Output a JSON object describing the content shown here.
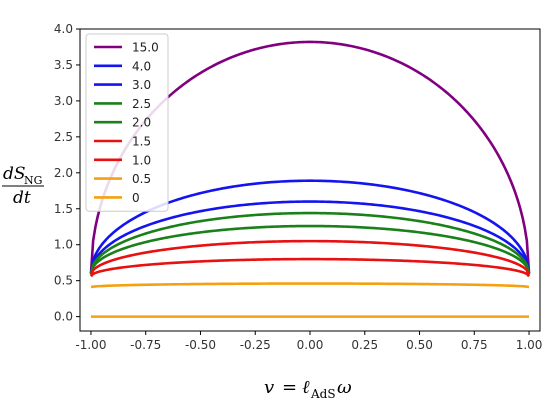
{
  "chart_data": {
    "type": "line",
    "title": "",
    "xlabel": {
      "var": "v",
      "eq": "=",
      "ell": "ℓ",
      "sub": "AdS",
      "omega": "ω"
    },
    "ylabel": {
      "numerator": "dS",
      "numerator_sub": "NG",
      "denominator": "dt"
    },
    "xlim": [
      -1.05,
      1.05
    ],
    "ylim": [
      -0.2,
      4.0
    ],
    "xticks": [
      "-1.00",
      "-0.75",
      "-0.50",
      "-0.25",
      "0.00",
      "0.25",
      "0.50",
      "0.75",
      "1.00"
    ],
    "yticks": [
      "0.0",
      "0.5",
      "1.0",
      "1.5",
      "2.0",
      "2.5",
      "3.0",
      "3.5",
      "4.0"
    ],
    "xtick_values": [
      -1.0,
      -0.75,
      -0.5,
      -0.25,
      0.0,
      0.25,
      0.5,
      0.75,
      1.0
    ],
    "ytick_values": [
      0.0,
      0.5,
      1.0,
      1.5,
      2.0,
      2.5,
      3.0,
      3.5,
      4.0
    ],
    "grid": false,
    "legend_position": "top-left",
    "x_range": [
      -1.0,
      1.0
    ],
    "series": [
      {
        "name": "15.0",
        "color": "#800080",
        "edge": 0.6,
        "peak": 3.82
      },
      {
        "name": "4.0",
        "color": "#1414f0",
        "edge": 0.6,
        "peak": 1.89
      },
      {
        "name": "3.0",
        "color": "#1414f0",
        "edge": 0.6,
        "peak": 1.6
      },
      {
        "name": "2.5",
        "color": "#1a801a",
        "edge": 0.6,
        "peak": 1.44
      },
      {
        "name": "2.0",
        "color": "#1a801a",
        "edge": 0.6,
        "peak": 1.26
      },
      {
        "name": "1.5",
        "color": "#e81010",
        "edge": 0.58,
        "peak": 1.05
      },
      {
        "name": "1.0",
        "color": "#e81010",
        "edge": 0.56,
        "peak": 0.8
      },
      {
        "name": "0.5",
        "color": "#f5a011",
        "edge": 0.41,
        "peak": 0.46
      },
      {
        "name": "0",
        "color": "#f5a011",
        "edge": 0.0,
        "peak": 0.0
      }
    ]
  }
}
